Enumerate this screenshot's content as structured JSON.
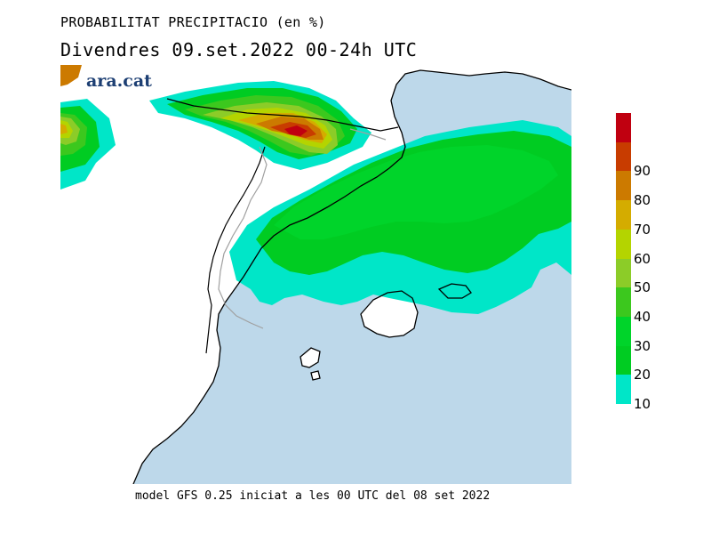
{
  "header": {
    "title": "PROBABILITAT PRECIPITACIO (en %)",
    "subtitle": "Divendres  09.set.2022 00-24h UTC"
  },
  "brand": {
    "logo_text": "ara.cat",
    "color": "#1d3f73"
  },
  "footer": {
    "text": "model GFS 0.25 iniciat a les 00 UTC del 08 set 2022"
  },
  "map": {
    "sea_color": "#bdd8ea",
    "land_color": "#ffffff",
    "coast_color": "#000000",
    "border_color": "#a0a0a0"
  },
  "legend": {
    "levels": [
      {
        "label": "10",
        "color": "#00e6c8"
      },
      {
        "label": "20",
        "color": "#00cc22"
      },
      {
        "label": "30",
        "color": "#00d42a"
      },
      {
        "label": "40",
        "color": "#3cc81e"
      },
      {
        "label": "50",
        "color": "#8ccc28"
      },
      {
        "label": "60",
        "color": "#b4d400"
      },
      {
        "label": "70",
        "color": "#d4ac00"
      },
      {
        "label": "80",
        "color": "#cc7a00"
      },
      {
        "label": "90",
        "color": "#c83c00"
      }
    ],
    "top_color": "#c00010"
  }
}
